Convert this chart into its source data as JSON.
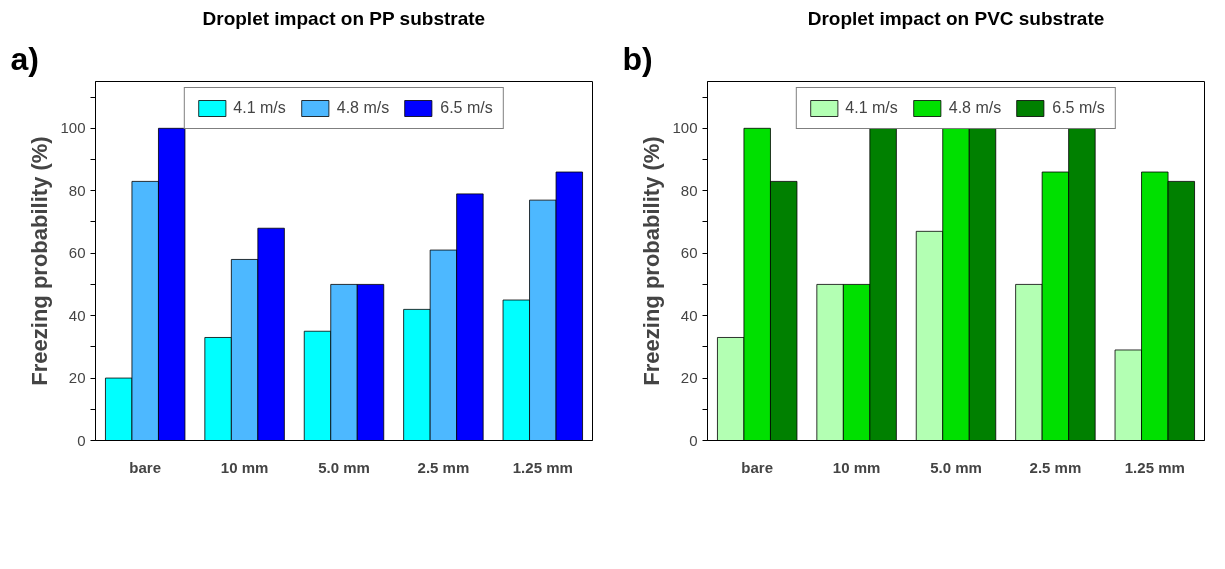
{
  "chart_data": [
    {
      "type": "bar",
      "title": "Droplet impact on PP substrate",
      "ylabel": "Freezing probability (%)",
      "annotations": [
        "a)"
      ],
      "categories": [
        "bare",
        "10 mm",
        "5.0 mm",
        "2.5 mm",
        "1.25 mm"
      ],
      "series": [
        {
          "name": "4.1 m/s",
          "color": "#00ffff",
          "values": [
            20,
            33,
            35,
            42,
            45
          ]
        },
        {
          "name": "4.8 m/s",
          "color": "#4db8ff",
          "values": [
            83,
            58,
            50,
            61,
            77
          ]
        },
        {
          "name": "6.5 m/s",
          "color": "#0000ff",
          "values": [
            100,
            68,
            50,
            79,
            86
          ]
        }
      ],
      "ylim": [
        0,
        115
      ],
      "yticks": [
        0,
        {
          "value": 10,
          "label": null
        },
        20,
        {
          "value": 30,
          "label": null
        },
        40,
        {
          "value": 50,
          "label": null
        },
        60,
        {
          "value": 70,
          "label": null
        },
        80,
        {
          "value": 90,
          "label": null
        },
        100,
        {
          "value": 110,
          "label": null
        }
      ],
      "legend": "top",
      "grid": false
    },
    {
      "type": "bar",
      "title": "Droplet impact on PVC substrate",
      "ylabel": "Freezing probability (%)",
      "annotations": [
        "b)"
      ],
      "categories": [
        "bare",
        "10 mm",
        "5.0 mm",
        "2.5 mm",
        "1.25 mm"
      ],
      "series": [
        {
          "name": "4.1 m/s",
          "color": "#b3ffb3",
          "values": [
            33,
            50,
            67,
            50,
            29
          ]
        },
        {
          "name": "4.8 m/s",
          "color": "#00e000",
          "values": [
            100,
            50,
            100,
            86,
            86
          ]
        },
        {
          "name": "6.5 m/s",
          "color": "#008000",
          "values": [
            83,
            100,
            100,
            100,
            83
          ]
        }
      ],
      "ylim": [
        0,
        115
      ],
      "yticks": [
        0,
        {
          "value": 10,
          "label": null
        },
        20,
        {
          "value": 30,
          "label": null
        },
        40,
        {
          "value": 50,
          "label": null
        },
        60,
        {
          "value": 70,
          "label": null
        },
        80,
        {
          "value": 90,
          "label": null
        },
        100,
        {
          "value": 110,
          "label": null
        }
      ],
      "legend": "top",
      "grid": false
    }
  ]
}
